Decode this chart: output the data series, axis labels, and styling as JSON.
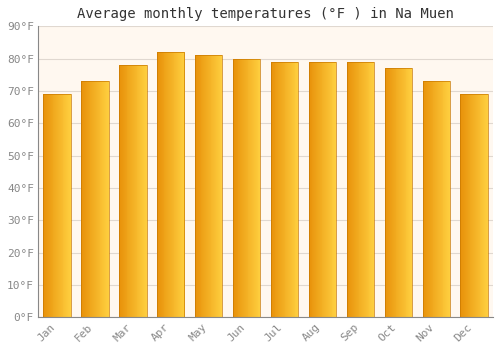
{
  "title": "Average monthly temperatures (°F ) in Na Muen",
  "months": [
    "Jan",
    "Feb",
    "Mar",
    "Apr",
    "May",
    "Jun",
    "Jul",
    "Aug",
    "Sep",
    "Oct",
    "Nov",
    "Dec"
  ],
  "values": [
    69,
    73,
    78,
    82,
    81,
    80,
    79,
    79,
    79,
    77,
    73,
    69
  ],
  "ylim": [
    0,
    90
  ],
  "yticks": [
    0,
    10,
    20,
    30,
    40,
    50,
    60,
    70,
    80,
    90
  ],
  "ytick_labels": [
    "0°F",
    "10°F",
    "20°F",
    "30°F",
    "40°F",
    "50°F",
    "60°F",
    "70°F",
    "80°F",
    "90°F"
  ],
  "bar_color_left": "#E8920A",
  "bar_color_right": "#FFD040",
  "bar_color_edge": "#C87800",
  "background_color": "#FFFFFF",
  "plot_bg_color": "#FFF8F0",
  "grid_color": "#E0D8D0",
  "title_fontsize": 10,
  "tick_fontsize": 8,
  "font_family": "monospace",
  "tick_color": "#888888",
  "figsize": [
    5.0,
    3.5
  ],
  "dpi": 100
}
